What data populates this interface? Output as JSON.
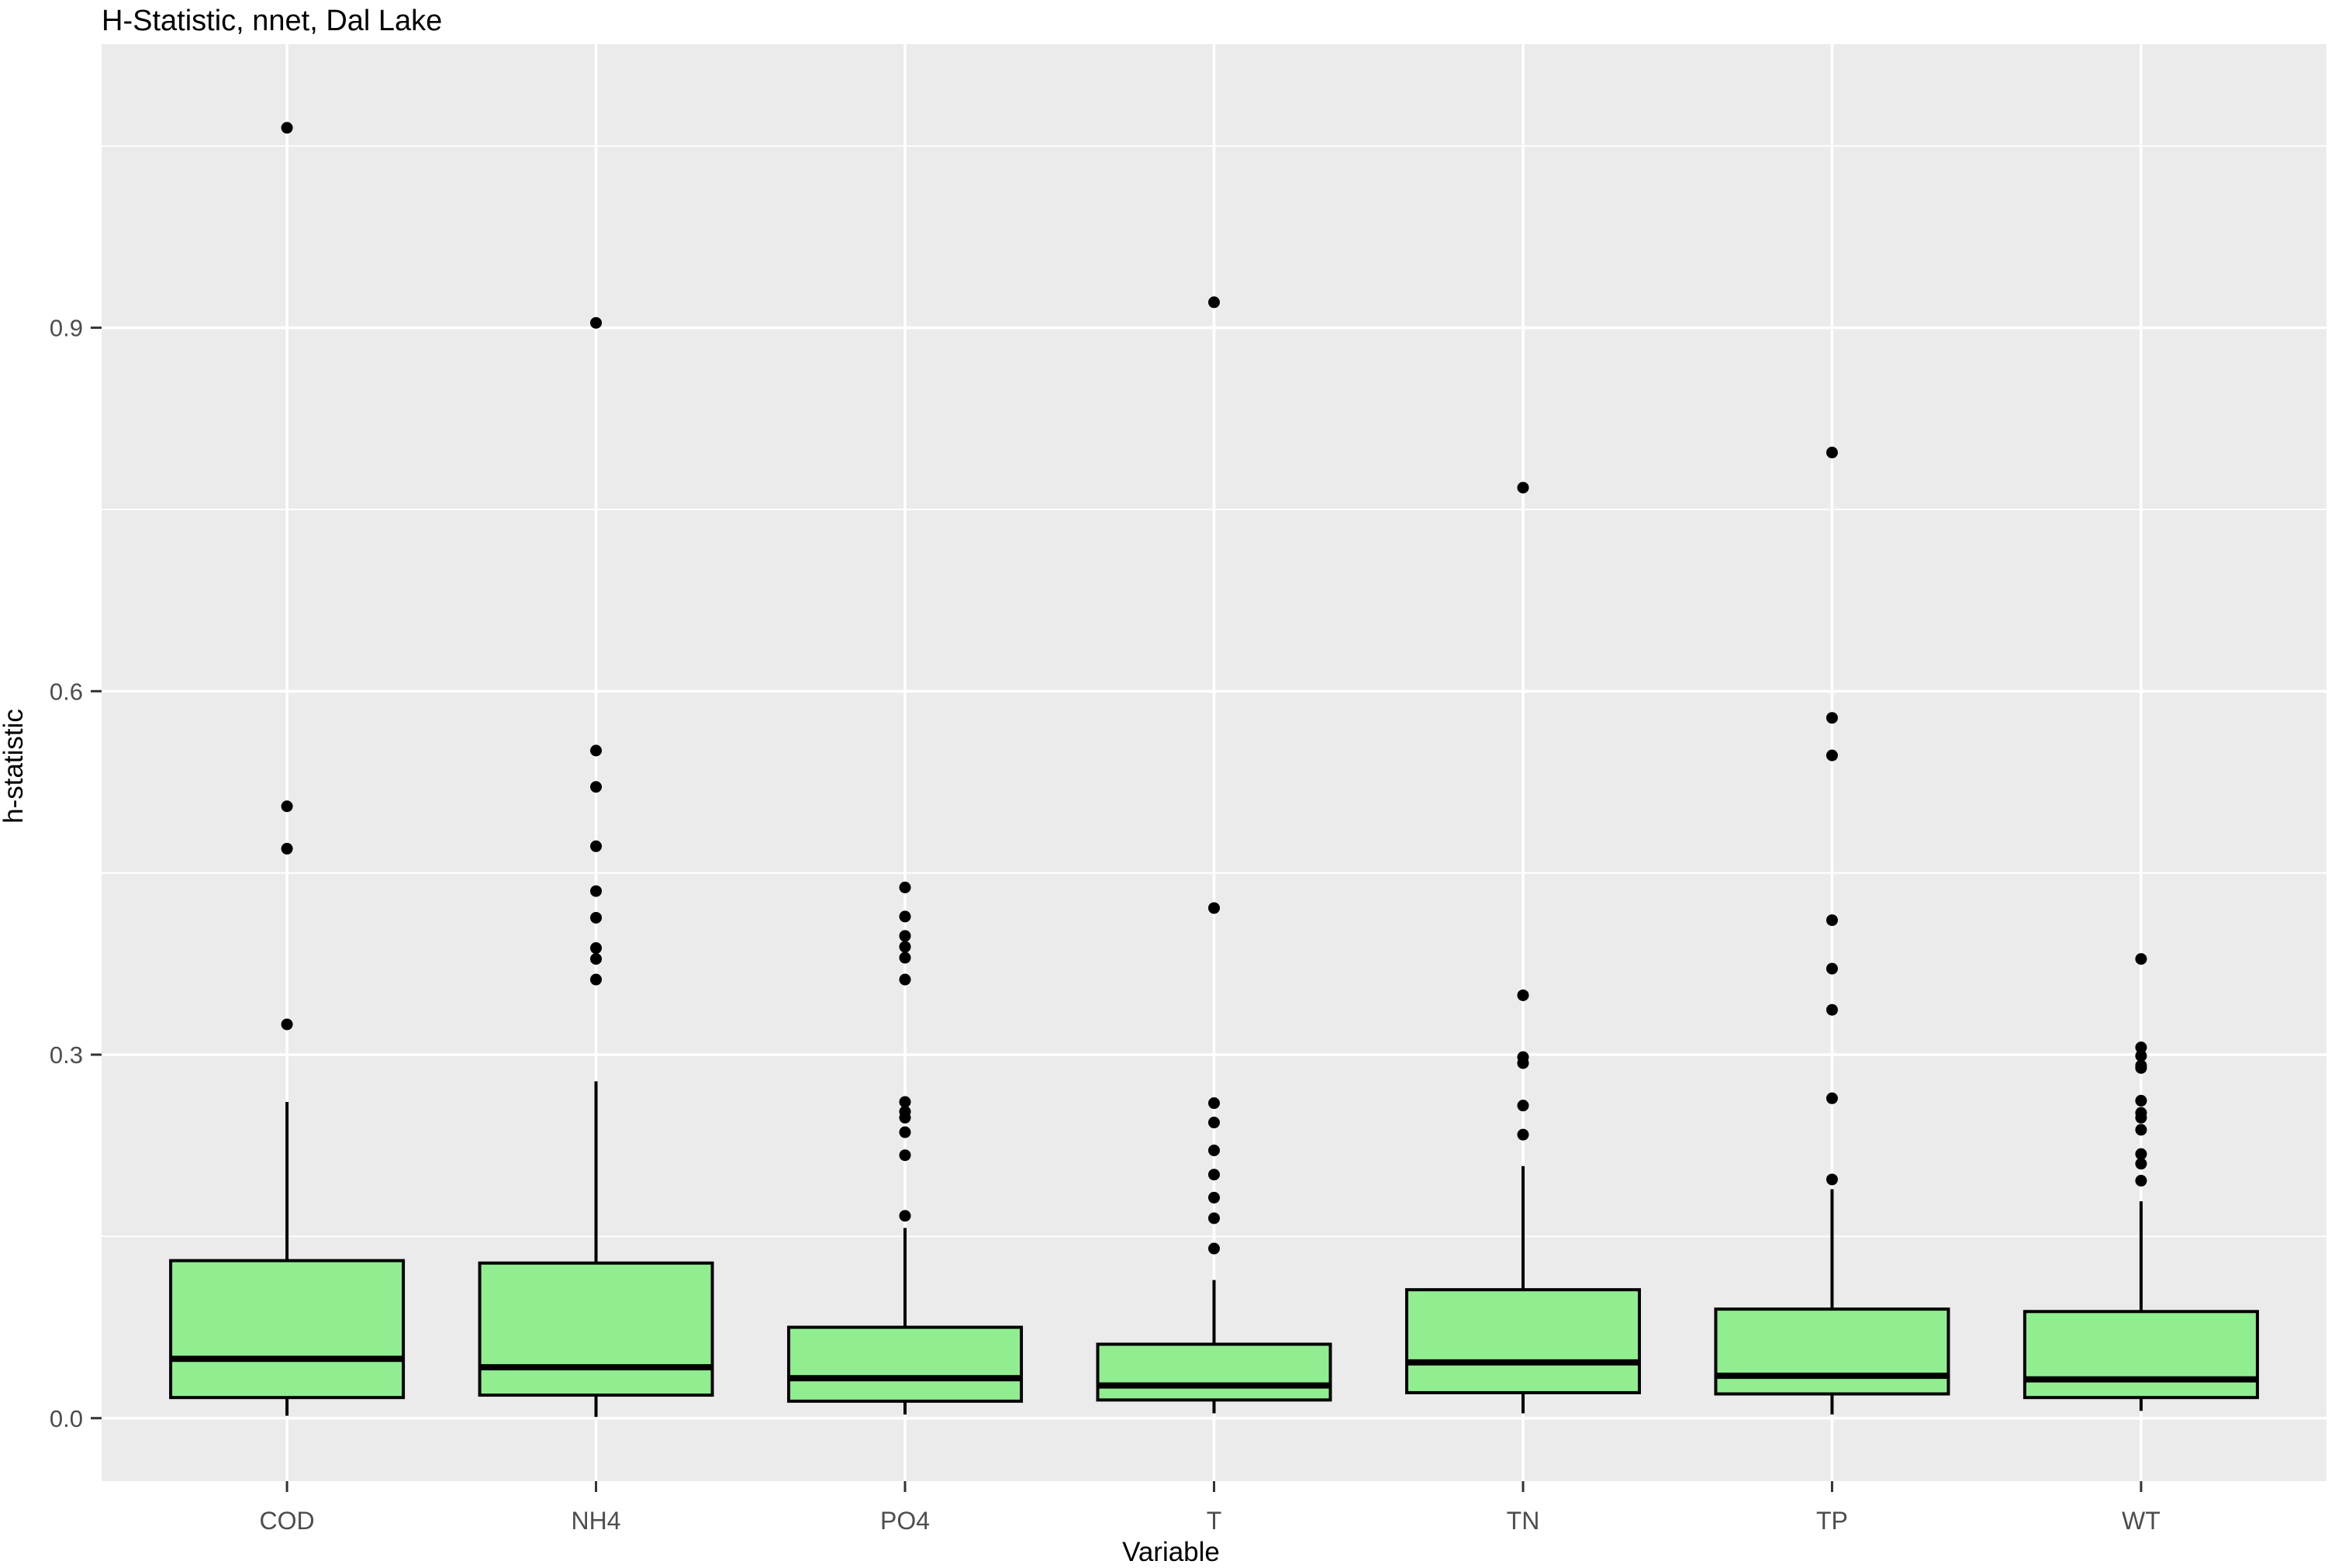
{
  "title": "H-Statistic, nnet, Dal Lake",
  "axes": {
    "x_title": "Variable",
    "y_title": "h-statistic",
    "y_tick_labels": [
      "0.0",
      "0.3",
      "0.6",
      "0.9"
    ],
    "y_tick_values": [
      0.0,
      0.3,
      0.6,
      0.9
    ],
    "y_minor_values": [
      0.15,
      0.45,
      0.75,
      1.05
    ],
    "x_tick_labels": [
      "COD",
      "NH4",
      "PO4",
      "T",
      "TN",
      "TP",
      "WT"
    ]
  },
  "colors": {
    "panel_background": "#EBEBEB",
    "gridline": "#FFFFFF",
    "box_fill": "#90EE90",
    "box_stroke": "#000000",
    "outlier": "#000000",
    "tick_label": "#4D4D4D",
    "tick_mark": "#333333",
    "title_text": "#000000"
  },
  "chart_data": {
    "type": "boxplot",
    "title": "H-Statistic, nnet, Dal Lake",
    "xlabel": "Variable",
    "ylabel": "h-statistic",
    "ylim": [
      -0.052,
      1.134
    ],
    "grid": "major-and-minor-horizontal, major-vertical",
    "legend": "none",
    "categories": [
      "COD",
      "NH4",
      "PO4",
      "T",
      "TN",
      "TP",
      "WT"
    ],
    "series": [
      {
        "name": "COD",
        "whisker_low": 0.002,
        "q1": 0.017,
        "median": 0.049,
        "q3": 0.13,
        "whisker_high": 0.261,
        "outliers": [
          0.325,
          0.47,
          0.505,
          1.065
        ]
      },
      {
        "name": "NH4",
        "whisker_low": 0.001,
        "q1": 0.019,
        "median": 0.042,
        "q3": 0.128,
        "whisker_high": 0.278,
        "outliers": [
          0.362,
          0.379,
          0.388,
          0.413,
          0.435,
          0.472,
          0.521,
          0.551,
          0.904
        ]
      },
      {
        "name": "PO4",
        "whisker_low": 0.003,
        "q1": 0.014,
        "median": 0.033,
        "q3": 0.075,
        "whisker_high": 0.157,
        "outliers": [
          0.167,
          0.217,
          0.236,
          0.248,
          0.253,
          0.261,
          0.362,
          0.38,
          0.389,
          0.398,
          0.414,
          0.438
        ]
      },
      {
        "name": "T",
        "whisker_low": 0.004,
        "q1": 0.015,
        "median": 0.027,
        "q3": 0.061,
        "whisker_high": 0.114,
        "outliers": [
          0.14,
          0.165,
          0.182,
          0.201,
          0.221,
          0.244,
          0.26,
          0.421,
          0.921
        ]
      },
      {
        "name": "TN",
        "whisker_low": 0.004,
        "q1": 0.021,
        "median": 0.046,
        "q3": 0.106,
        "whisker_high": 0.208,
        "outliers": [
          0.234,
          0.258,
          0.293,
          0.298,
          0.349,
          0.768
        ]
      },
      {
        "name": "TP",
        "whisker_low": 0.003,
        "q1": 0.02,
        "median": 0.035,
        "q3": 0.09,
        "whisker_high": 0.189,
        "outliers": [
          0.197,
          0.264,
          0.337,
          0.371,
          0.411,
          0.547,
          0.578,
          0.797
        ]
      },
      {
        "name": "WT",
        "whisker_low": 0.006,
        "q1": 0.017,
        "median": 0.032,
        "q3": 0.088,
        "whisker_high": 0.179,
        "outliers": [
          0.196,
          0.21,
          0.218,
          0.238,
          0.248,
          0.252,
          0.262,
          0.289,
          0.291,
          0.299,
          0.306,
          0.379
        ]
      }
    ]
  }
}
